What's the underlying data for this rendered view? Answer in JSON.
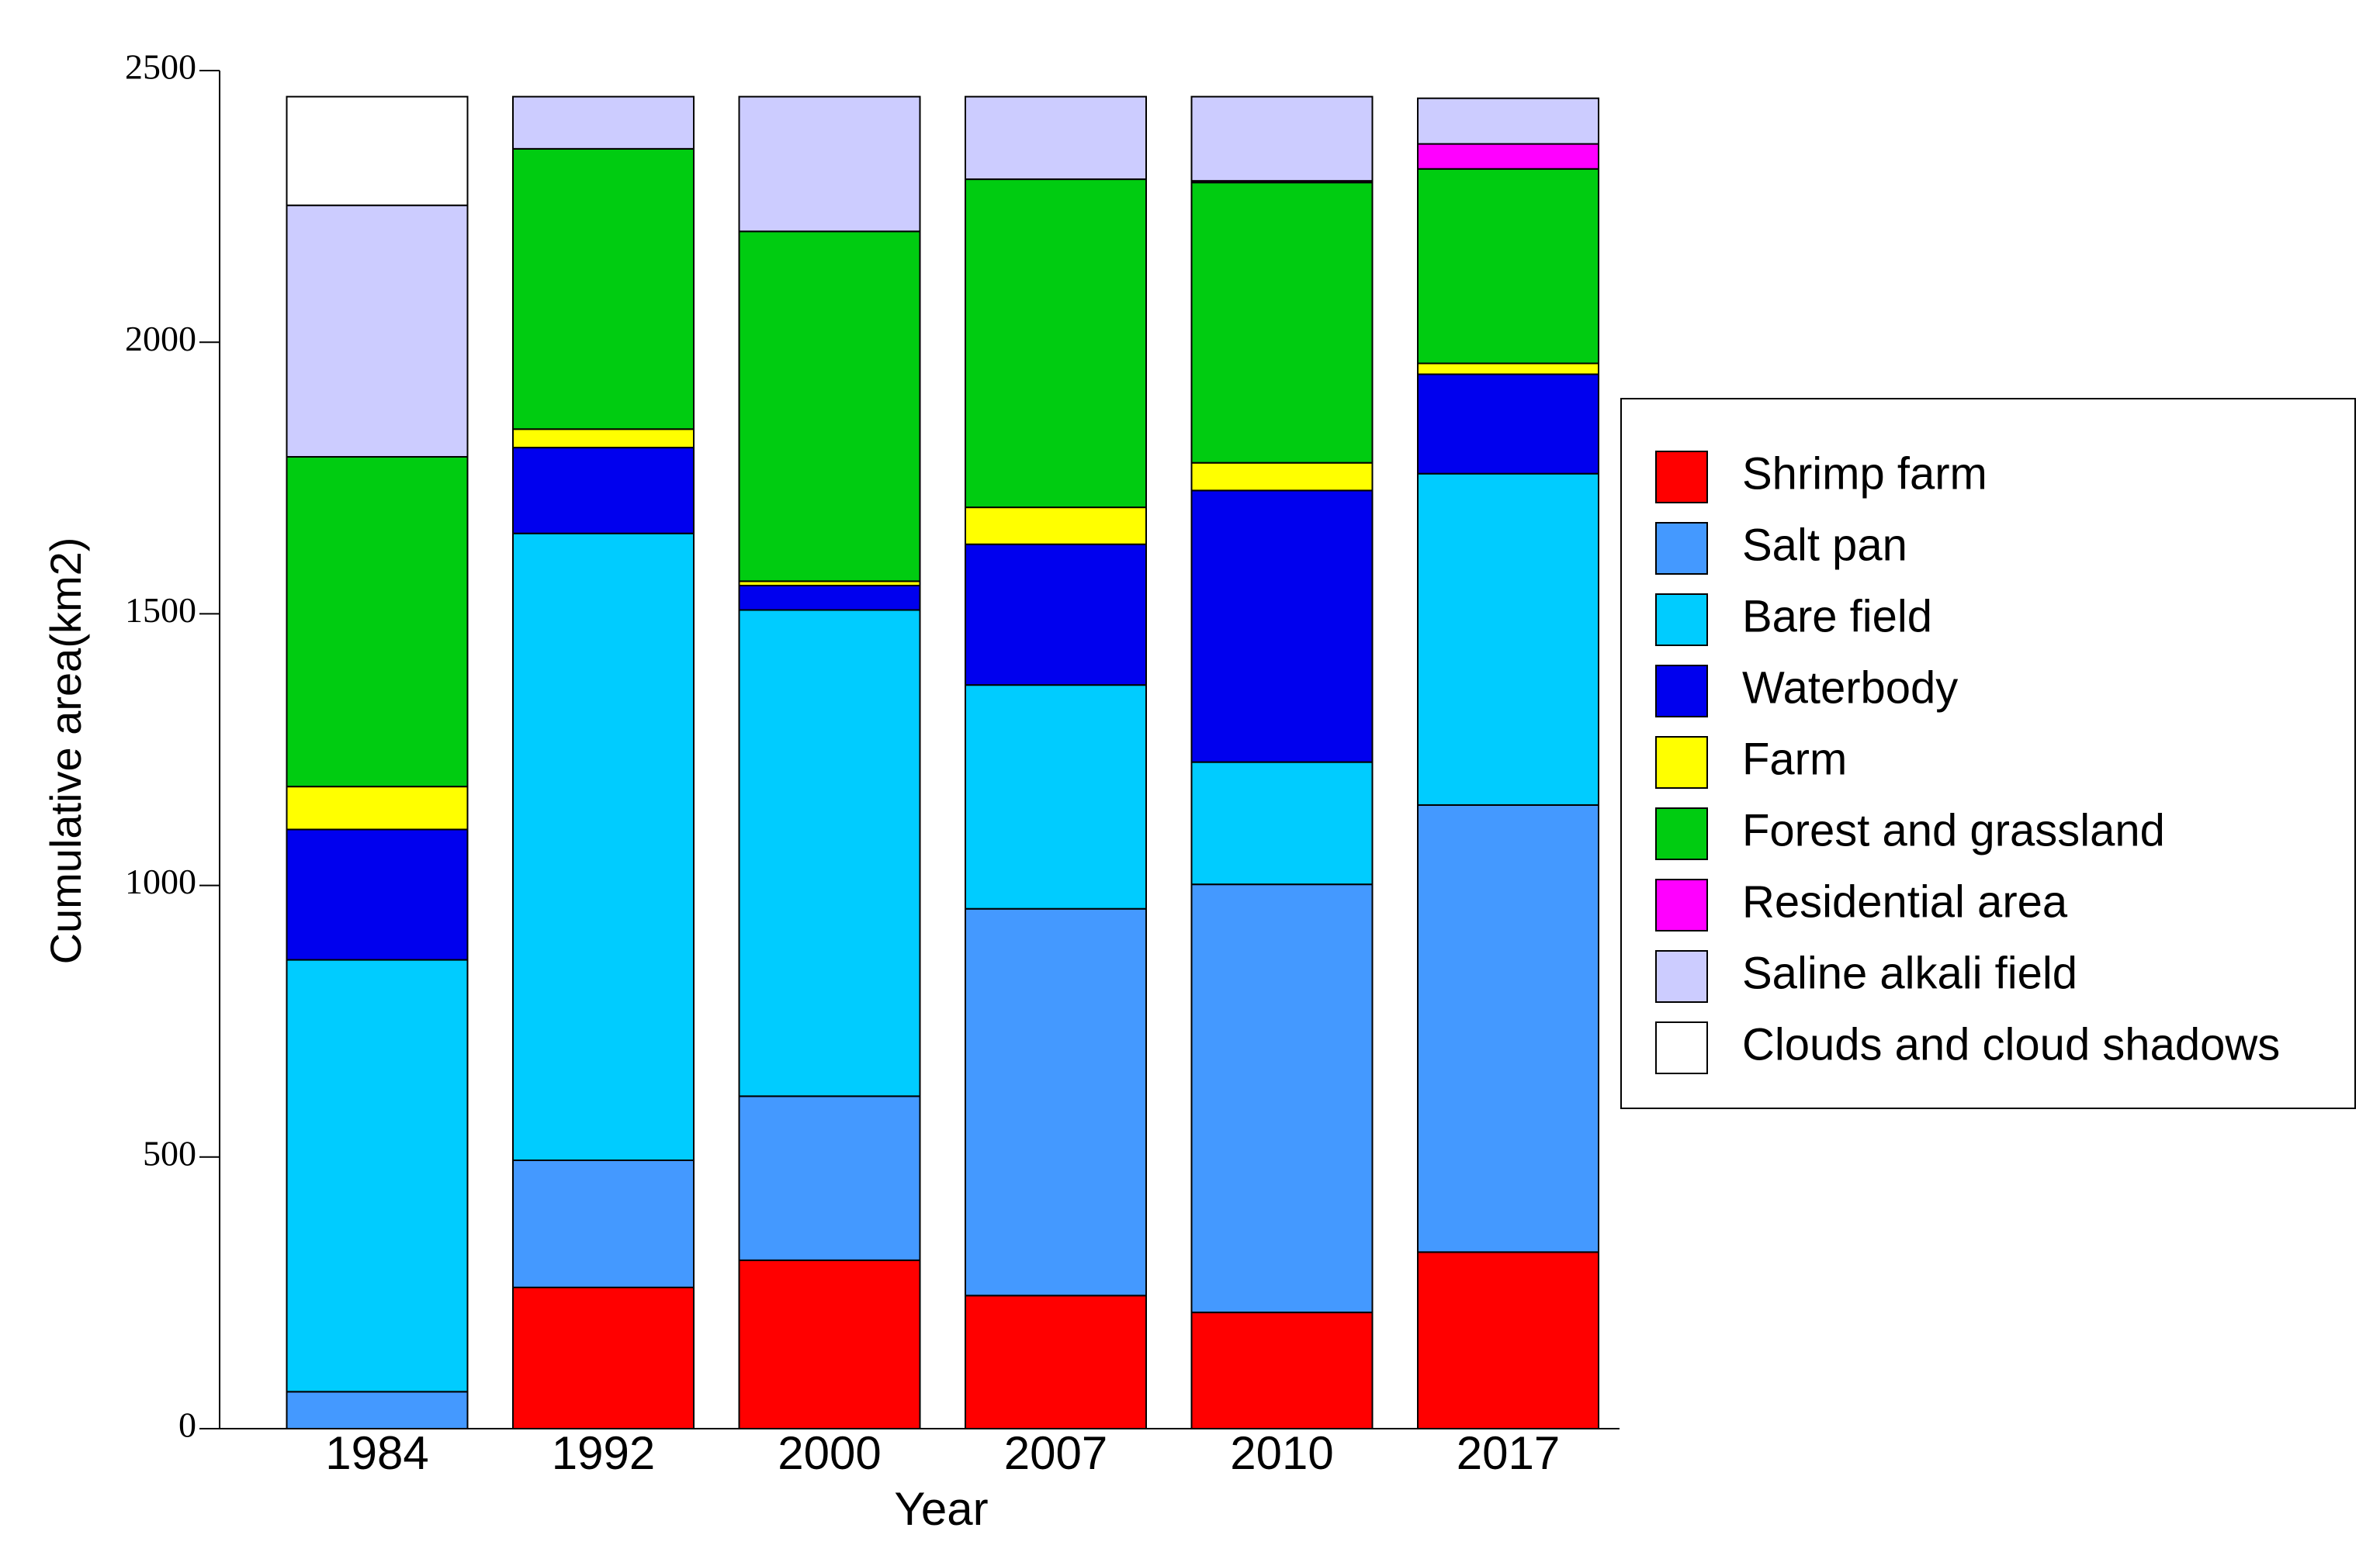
{
  "chart_data": {
    "type": "stacked_bar",
    "x_label": "Year",
    "y_label": "Cumulative area(km2)",
    "categories": [
      "1984",
      "1992",
      "2000",
      "2007",
      "2010",
      "2017"
    ],
    "series": [
      {
        "name": "Shrimp farm",
        "color": "#ff0000",
        "values": [
          0,
          260,
          310,
          245,
          214,
          325
        ]
      },
      {
        "name": "Salt pan",
        "color": "#4499ff",
        "values": [
          68,
          234,
          302,
          712,
          788,
          823
        ]
      },
      {
        "name": "Bare field",
        "color": "#00ccff",
        "values": [
          795,
          1154,
          895,
          412,
          225,
          610
        ]
      },
      {
        "name": "Waterbody",
        "color": "#0000ee",
        "values": [
          240,
          158,
          45,
          259,
          500,
          183
        ]
      },
      {
        "name": "Farm",
        "color": "#ffff00",
        "values": [
          79,
          34,
          8,
          68,
          51,
          20
        ]
      },
      {
        "name": "Forest and grassland",
        "color": "#00cc11",
        "values": [
          607,
          516,
          644,
          604,
          516,
          358
        ]
      },
      {
        "name": "Residential area",
        "color": "#ff00ff",
        "values": [
          0,
          0,
          0,
          0,
          3,
          46
        ]
      },
      {
        "name": "Saline alkali field",
        "color": "#ccccff",
        "values": [
          463,
          96,
          248,
          152,
          155,
          84
        ]
      },
      {
        "name": "Clouds and cloud shadows",
        "color": "#ffffff",
        "values": [
          200,
          0,
          0,
          0,
          0,
          0
        ]
      }
    ],
    "ylim": [
      0,
      2500
    ],
    "yticks": [
      0,
      500,
      1000,
      1500,
      2000,
      2500
    ],
    "legend": "right"
  }
}
